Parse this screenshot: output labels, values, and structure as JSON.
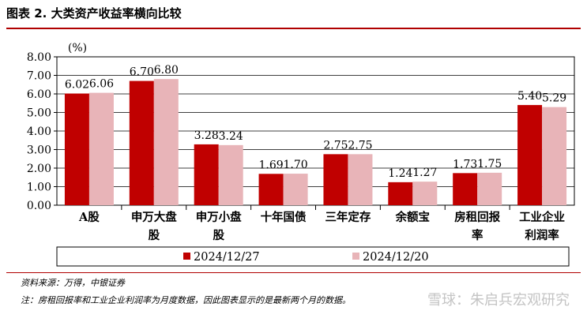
{
  "figure_title": "图表 2.  大类资产收益率横向比较",
  "source_note": "资料来源：万得，中银证券",
  "footnote": "注：房租回报率和工业企业利润率为月度数据，因此图表显示的是最新两个月的数据。",
  "watermark": "雪球：朱启兵宏观研究",
  "colors": {
    "series_1": "#c00000",
    "series_2": "#e8b4b8",
    "accent_rule": "#b00000"
  },
  "chart_data": {
    "type": "bar",
    "unit_label": "(%)",
    "ylim": [
      0,
      8
    ],
    "yticks": [
      "0.00",
      "1.00",
      "2.00",
      "3.00",
      "4.00",
      "5.00",
      "6.00",
      "7.00",
      "8.00"
    ],
    "grid": true,
    "legend_position": "bottom",
    "categories": [
      [
        "A股"
      ],
      [
        "申万大盘",
        "股"
      ],
      [
        "申万小盘",
        "股"
      ],
      [
        "十年国债"
      ],
      [
        "三年定存"
      ],
      [
        "余额宝"
      ],
      [
        "房租回报",
        "率"
      ],
      [
        "工业企业",
        "利润率"
      ]
    ],
    "series": [
      {
        "name": "2024/12/27",
        "values": [
          6.02,
          6.7,
          3.28,
          1.69,
          2.75,
          1.24,
          1.73,
          5.4
        ],
        "labels": [
          "6.02",
          "6.70",
          "3.28",
          "1.69",
          "2.75",
          "1.24",
          "1.73",
          "5.40"
        ]
      },
      {
        "name": "2024/12/20",
        "values": [
          6.06,
          6.8,
          3.24,
          1.7,
          2.75,
          1.27,
          1.75,
          5.29
        ],
        "labels": [
          "6.06",
          "6.80",
          "3.24",
          "1.70",
          "2.75",
          "1.27",
          "1.75",
          "5.29"
        ]
      }
    ]
  }
}
